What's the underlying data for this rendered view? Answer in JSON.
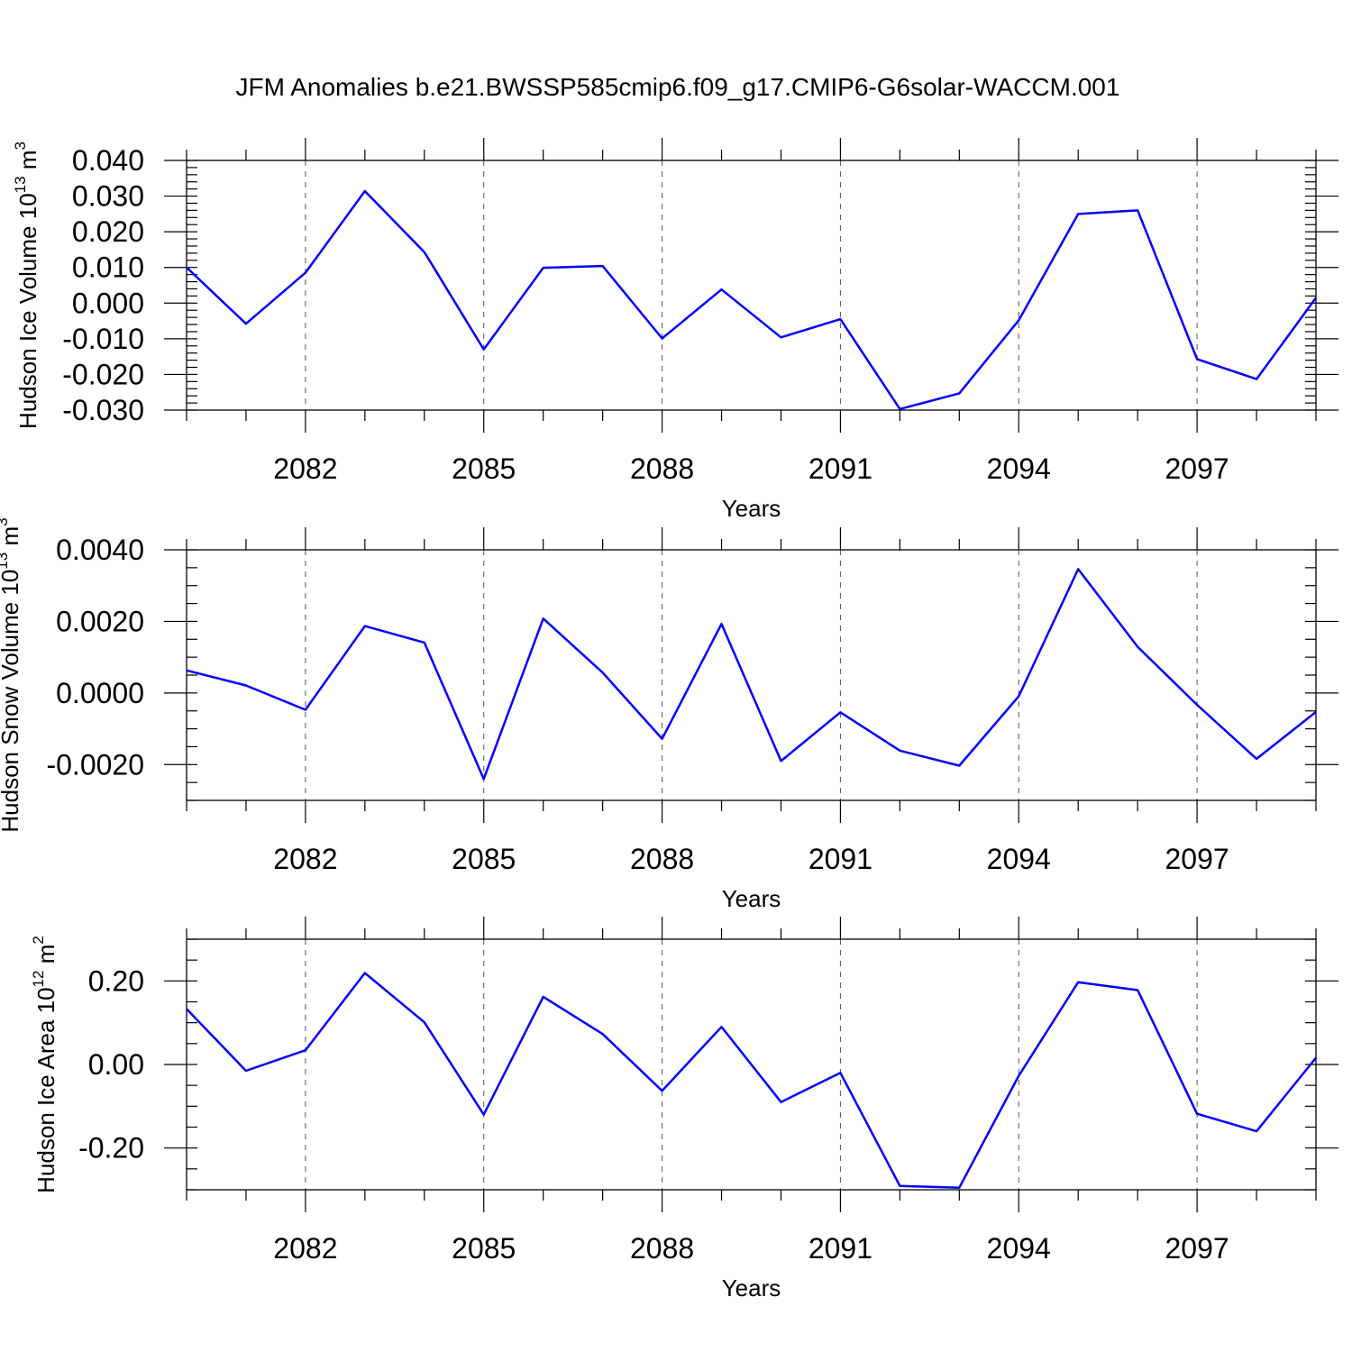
{
  "title": "JFM Anomalies b.e21.BWSSP585cmip6.f09_g17.CMIP6-G6solar-WACCM.001",
  "colors": {
    "line": "#0000ff",
    "grid": "#555555",
    "frame": "#000000"
  },
  "chart_data": [
    {
      "type": "line",
      "ylabel": "Hudson Ice Volume",
      "yunit_base": "10",
      "yunit_exp": "13",
      "yunit_tail": "m",
      "yunit_tail_exp": "3",
      "xlabel": "Years",
      "xlim": [
        2080,
        2099
      ],
      "ylim": [
        -0.03,
        0.04
      ],
      "xticks": [
        2082,
        2085,
        2088,
        2091,
        2094,
        2097
      ],
      "xtick_labels": [
        "2082",
        "2085",
        "2088",
        "2091",
        "2094",
        "2097"
      ],
      "yticks": [
        -0.03,
        -0.02,
        -0.01,
        0.0,
        0.01,
        0.02,
        0.03,
        0.04
      ],
      "ytick_labels": [
        "-0.030",
        "-0.020",
        "-0.010",
        "0.000",
        "0.010",
        "0.020",
        "0.030",
        "0.040"
      ],
      "yminor_step": 0.002,
      "grid": "vertical dashed at labeled years",
      "x": [
        2080,
        2081,
        2082,
        2083,
        2084,
        2085,
        2086,
        2087,
        2088,
        2089,
        2090,
        2091,
        2092,
        2093,
        2094,
        2095,
        2096,
        2097,
        2098,
        2099
      ],
      "values": [
        0.01,
        -0.0058,
        0.0085,
        0.0314,
        0.0143,
        -0.013,
        0.0099,
        0.0104,
        -0.0099,
        0.0038,
        -0.0096,
        -0.0045,
        -0.0297,
        -0.0253,
        -0.0048,
        0.025,
        0.026,
        -0.0157,
        -0.0213,
        0.0015
      ]
    },
    {
      "type": "line",
      "ylabel": "Hudson Snow Volume",
      "yunit_base": "10",
      "yunit_exp": "13",
      "yunit_tail": "m",
      "yunit_tail_exp": "3",
      "xlabel": "Years",
      "xlim": [
        2080,
        2099
      ],
      "ylim": [
        -0.003,
        0.004
      ],
      "xticks": [
        2082,
        2085,
        2088,
        2091,
        2094,
        2097
      ],
      "xtick_labels": [
        "2082",
        "2085",
        "2088",
        "2091",
        "2094",
        "2097"
      ],
      "yticks": [
        -0.002,
        0.0,
        0.002,
        0.004
      ],
      "ytick_labels": [
        "-0.0020",
        "0.0000",
        "0.0020",
        "0.0040"
      ],
      "yminor_step": 0.0005,
      "grid": "vertical dashed at labeled years",
      "x": [
        2080,
        2081,
        2082,
        2083,
        2084,
        2085,
        2086,
        2087,
        2088,
        2089,
        2090,
        2091,
        2092,
        2093,
        2094,
        2095,
        2096,
        2097,
        2098,
        2099
      ],
      "values": [
        0.00063,
        0.00021,
        -0.00047,
        0.00187,
        0.00141,
        -0.0024,
        0.00208,
        0.00057,
        -0.00128,
        0.00193,
        -0.0019,
        -0.00054,
        -0.00161,
        -0.00203,
        -9e-05,
        0.00346,
        0.00129,
        -0.00033,
        -0.00184,
        -0.00053
      ]
    },
    {
      "type": "line",
      "ylabel": "Hudson Ice Area",
      "yunit_base": "10",
      "yunit_exp": "12",
      "yunit_tail": "m",
      "yunit_tail_exp": "2",
      "xlabel": "Years",
      "xlim": [
        2080,
        2099
      ],
      "ylim": [
        -0.3,
        0.3
      ],
      "xticks": [
        2082,
        2085,
        2088,
        2091,
        2094,
        2097
      ],
      "xtick_labels": [
        "2082",
        "2085",
        "2088",
        "2091",
        "2094",
        "2097"
      ],
      "yticks": [
        -0.2,
        0.0,
        0.2
      ],
      "ytick_labels": [
        "-0.20",
        "0.00",
        "0.20"
      ],
      "yminor_step": 0.05,
      "grid": "vertical dashed at labeled years",
      "x": [
        2080,
        2081,
        2082,
        2083,
        2084,
        2085,
        2086,
        2087,
        2088,
        2089,
        2090,
        2091,
        2092,
        2093,
        2094,
        2095,
        2096,
        2097,
        2098,
        2099
      ],
      "values": [
        0.133,
        -0.015,
        0.034,
        0.219,
        0.101,
        -0.12,
        0.162,
        0.073,
        -0.063,
        0.09,
        -0.09,
        -0.02,
        -0.291,
        -0.295,
        -0.027,
        0.197,
        0.178,
        -0.118,
        -0.16,
        0.016
      ]
    }
  ]
}
